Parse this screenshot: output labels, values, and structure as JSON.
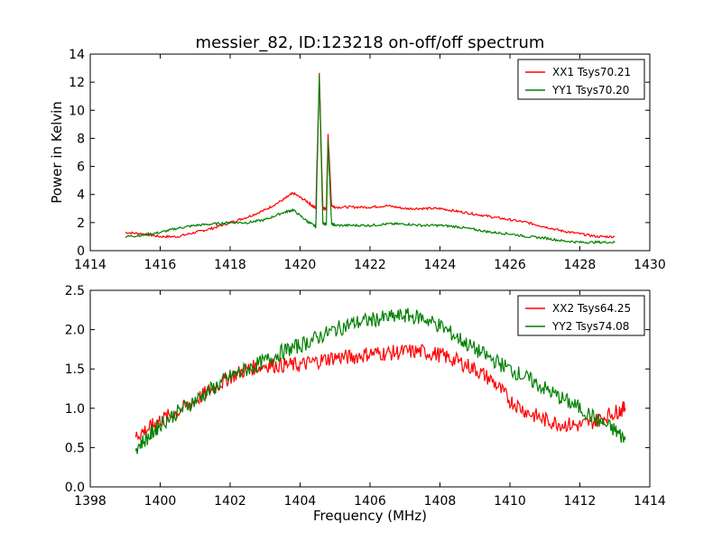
{
  "figure": {
    "title": "messier_82, ID:123218 on-off/off spectrum",
    "xlabel": "Frequency (MHz)",
    "ylabel_top": "Power in Kelvin"
  },
  "chart_data": [
    {
      "type": "line",
      "title": "messier_82, ID:123218 on-off/off spectrum",
      "xlabel": "",
      "ylabel": "Power in Kelvin",
      "xlim": [
        1414,
        1430
      ],
      "ylim": [
        0,
        14
      ],
      "xticks": [
        "1414",
        "1416",
        "1418",
        "1420",
        "1422",
        "1424",
        "1426",
        "1428",
        "1430"
      ],
      "yticks": [
        "0",
        "2",
        "4",
        "6",
        "8",
        "10",
        "12",
        "14"
      ],
      "legend_position": "top-right",
      "series": [
        {
          "name": "XX1 Tsys70.21",
          "color": "#ff0000",
          "x": [
            1415.0,
            1415.5,
            1416.0,
            1416.5,
            1417.0,
            1417.5,
            1418.0,
            1418.5,
            1419.0,
            1419.5,
            1419.8,
            1420.2,
            1420.45,
            1420.55,
            1420.65,
            1420.75,
            1420.8,
            1420.9,
            1421.0,
            1421.5,
            1422.0,
            1422.5,
            1423.0,
            1423.5,
            1424.0,
            1424.5,
            1425.0,
            1425.5,
            1426.0,
            1426.5,
            1427.0,
            1427.5,
            1428.0,
            1428.5,
            1429.0
          ],
          "y": [
            1.3,
            1.2,
            1.0,
            1.0,
            1.3,
            1.6,
            2.0,
            2.4,
            2.9,
            3.6,
            4.1,
            3.5,
            3.0,
            12.6,
            3.0,
            3.0,
            8.3,
            3.2,
            3.1,
            3.1,
            3.1,
            3.2,
            3.0,
            3.0,
            3.0,
            2.8,
            2.6,
            2.4,
            2.2,
            2.0,
            1.7,
            1.4,
            1.2,
            1.0,
            1.0
          ]
        },
        {
          "name": "YY1 Tsys70.20",
          "color": "#008000",
          "x": [
            1415.0,
            1415.5,
            1416.0,
            1416.5,
            1417.0,
            1417.5,
            1418.0,
            1418.5,
            1419.0,
            1419.5,
            1419.8,
            1420.2,
            1420.45,
            1420.55,
            1420.65,
            1420.75,
            1420.8,
            1420.9,
            1421.0,
            1421.5,
            1422.0,
            1422.5,
            1423.0,
            1423.5,
            1424.0,
            1424.5,
            1425.0,
            1425.5,
            1426.0,
            1426.5,
            1427.0,
            1427.5,
            1428.0,
            1428.5,
            1429.0
          ],
          "y": [
            1.0,
            1.1,
            1.3,
            1.6,
            1.8,
            1.9,
            2.0,
            2.0,
            2.2,
            2.7,
            2.9,
            2.1,
            1.7,
            12.5,
            2.0,
            1.8,
            7.8,
            1.9,
            1.8,
            1.8,
            1.8,
            1.9,
            1.9,
            1.8,
            1.8,
            1.7,
            1.5,
            1.3,
            1.2,
            1.0,
            0.9,
            0.7,
            0.6,
            0.6,
            0.6
          ]
        }
      ]
    },
    {
      "type": "line",
      "title": "",
      "xlabel": "Frequency (MHz)",
      "ylabel": "",
      "xlim": [
        1398,
        1414
      ],
      "ylim": [
        0,
        2.5
      ],
      "xticks": [
        "1398",
        "1400",
        "1402",
        "1404",
        "1406",
        "1408",
        "1410",
        "1412",
        "1414"
      ],
      "yticks": [
        "0.0",
        "0.5",
        "1.0",
        "1.5",
        "2.0",
        "2.5"
      ],
      "legend_position": "top-right",
      "series": [
        {
          "name": "XX2 Tsys64.25",
          "color": "#ff0000",
          "x": [
            1399.3,
            1399.7,
            1400.0,
            1400.5,
            1401.0,
            1401.5,
            1402.0,
            1402.5,
            1403.0,
            1403.5,
            1404.0,
            1404.5,
            1405.0,
            1405.5,
            1406.0,
            1406.5,
            1407.0,
            1407.5,
            1408.0,
            1408.5,
            1409.0,
            1409.5,
            1410.0,
            1410.5,
            1411.0,
            1411.5,
            1412.0,
            1412.5,
            1413.0,
            1413.3
          ],
          "y": [
            0.65,
            0.75,
            0.85,
            0.95,
            1.1,
            1.25,
            1.4,
            1.5,
            1.55,
            1.55,
            1.55,
            1.6,
            1.65,
            1.65,
            1.7,
            1.7,
            1.72,
            1.72,
            1.68,
            1.6,
            1.5,
            1.35,
            1.1,
            0.95,
            0.85,
            0.8,
            0.78,
            0.85,
            0.95,
            1.0
          ]
        },
        {
          "name": "YY2 Tsys74.08",
          "color": "#008000",
          "x": [
            1399.3,
            1399.7,
            1400.0,
            1400.5,
            1401.0,
            1401.5,
            1402.0,
            1402.5,
            1403.0,
            1403.5,
            1404.0,
            1404.5,
            1405.0,
            1405.5,
            1406.0,
            1406.5,
            1407.0,
            1407.5,
            1408.0,
            1408.5,
            1409.0,
            1409.5,
            1410.0,
            1410.5,
            1411.0,
            1411.5,
            1412.0,
            1412.5,
            1413.0,
            1413.3
          ],
          "y": [
            0.5,
            0.65,
            0.8,
            0.95,
            1.1,
            1.25,
            1.4,
            1.5,
            1.6,
            1.72,
            1.8,
            1.9,
            2.0,
            2.08,
            2.12,
            2.15,
            2.18,
            2.15,
            2.05,
            1.9,
            1.75,
            1.62,
            1.5,
            1.38,
            1.25,
            1.12,
            1.0,
            0.85,
            0.72,
            0.6
          ]
        }
      ]
    }
  ]
}
